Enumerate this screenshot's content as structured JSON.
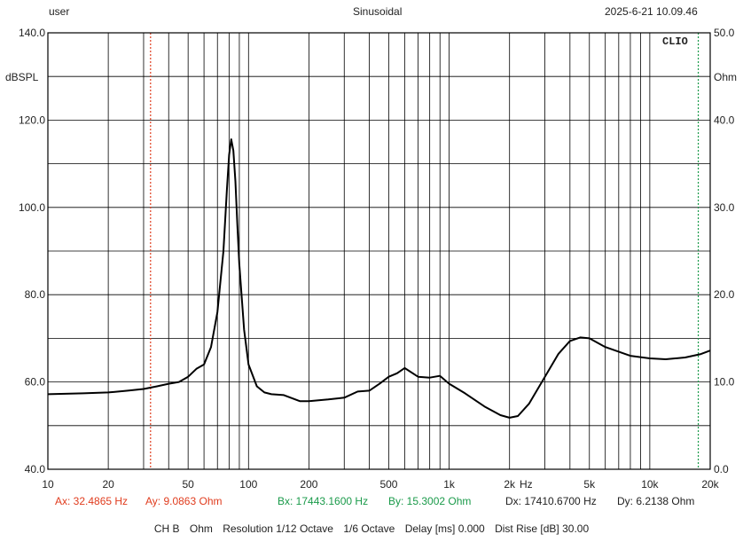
{
  "header": {
    "user": "user",
    "mode": "Sinusoidal",
    "timestamp": "2025-6-21 10.09.46"
  },
  "brand": "CLIO",
  "colors": {
    "curve": "#000000",
    "grid": "#000000",
    "cursor_a": "#e03c1e",
    "cursor_b": "#1a9a4a",
    "delta": "#222222"
  },
  "readouts": {
    "ax": "Ax: 32.4865 Hz",
    "ay": "Ay: 9.0863 Ohm",
    "bx": "Bx: 17443.1600 Hz",
    "by": "By: 15.3002 Ohm",
    "dx": "Dx: 17410.6700 Hz",
    "dy": "Dy: 6.2138 Ohm"
  },
  "footer": {
    "channel": "CH B",
    "unit": "Ohm",
    "resolution": "Resolution 1/12 Octave",
    "smoothing": "1/6 Octave",
    "delay": "Delay [ms] 0.000",
    "dist_rise": "Dist Rise [dB] 30.00"
  },
  "chart_data": {
    "type": "line",
    "x_scale": "log",
    "xlim": [
      10,
      20000
    ],
    "x_unit_label": "Hz",
    "x_ticks": [
      {
        "value": 10,
        "label": "10"
      },
      {
        "value": 20,
        "label": "20"
      },
      {
        "value": 50,
        "label": "50"
      },
      {
        "value": 100,
        "label": "100"
      },
      {
        "value": 200,
        "label": "200"
      },
      {
        "value": 500,
        "label": "500"
      },
      {
        "value": 1000,
        "label": "1k"
      },
      {
        "value": 2000,
        "label": "2k"
      },
      {
        "value": 5000,
        "label": "5k"
      },
      {
        "value": 10000,
        "label": "10k"
      },
      {
        "value": 20000,
        "label": "20k"
      }
    ],
    "y_left": {
      "label": "dBSPL",
      "lim": [
        40,
        140
      ],
      "ticks": [
        {
          "value": 40,
          "label": "40.0"
        },
        {
          "value": 60,
          "label": "60.0"
        },
        {
          "value": 80,
          "label": "80.0"
        },
        {
          "value": 100,
          "label": "100.0"
        },
        {
          "value": 120,
          "label": "120.0"
        },
        {
          "value": 140,
          "label": "140.0"
        }
      ]
    },
    "y_right": {
      "label": "Ohm",
      "lim": [
        0,
        50
      ],
      "ticks": [
        {
          "value": 0,
          "label": "0.0"
        },
        {
          "value": 10,
          "label": "10.0"
        },
        {
          "value": 20,
          "label": "20.0"
        },
        {
          "value": 30,
          "label": "30.0"
        },
        {
          "value": 40,
          "label": "40.0"
        },
        {
          "value": 50,
          "label": "50.0"
        }
      ]
    },
    "grid": true,
    "cursors": [
      {
        "name": "A",
        "x": 32.4865,
        "y": 9.0863,
        "axis": "right",
        "color": "#e03c1e"
      },
      {
        "name": "B",
        "x": 17443.16,
        "y": 15.3002,
        "axis": "right",
        "color": "#1a9a4a"
      }
    ],
    "series": [
      {
        "axis": "right",
        "color": "#000000",
        "x": [
          10,
          15,
          20,
          25,
          30,
          35,
          40,
          45,
          50,
          55,
          60,
          65,
          70,
          75,
          78,
          80,
          82,
          84,
          86,
          88,
          90,
          95,
          100,
          110,
          120,
          130,
          150,
          180,
          200,
          250,
          300,
          350,
          400,
          450,
          500,
          550,
          600,
          700,
          800,
          900,
          1000,
          1200,
          1500,
          1800,
          2000,
          2200,
          2500,
          3000,
          3500,
          4000,
          4500,
          5000,
          6000,
          8000,
          10000,
          12000,
          15000,
          18000,
          20000
        ],
        "y": [
          8.6,
          8.7,
          8.8,
          9.0,
          9.2,
          9.5,
          9.8,
          10.0,
          10.6,
          11.5,
          12.0,
          14.0,
          18.0,
          25.0,
          32.0,
          36.0,
          37.8,
          36.5,
          33.0,
          28.0,
          23.5,
          16.0,
          12.0,
          9.5,
          8.8,
          8.6,
          8.5,
          7.8,
          7.8,
          8.0,
          8.2,
          8.9,
          9.0,
          9.8,
          10.6,
          11.0,
          11.6,
          10.6,
          10.5,
          10.7,
          9.8,
          8.7,
          7.2,
          6.2,
          5.9,
          6.1,
          7.5,
          10.6,
          13.2,
          14.7,
          15.1,
          15.0,
          14.0,
          13.0,
          12.7,
          12.6,
          12.8,
          13.2,
          13.6
        ]
      }
    ]
  }
}
